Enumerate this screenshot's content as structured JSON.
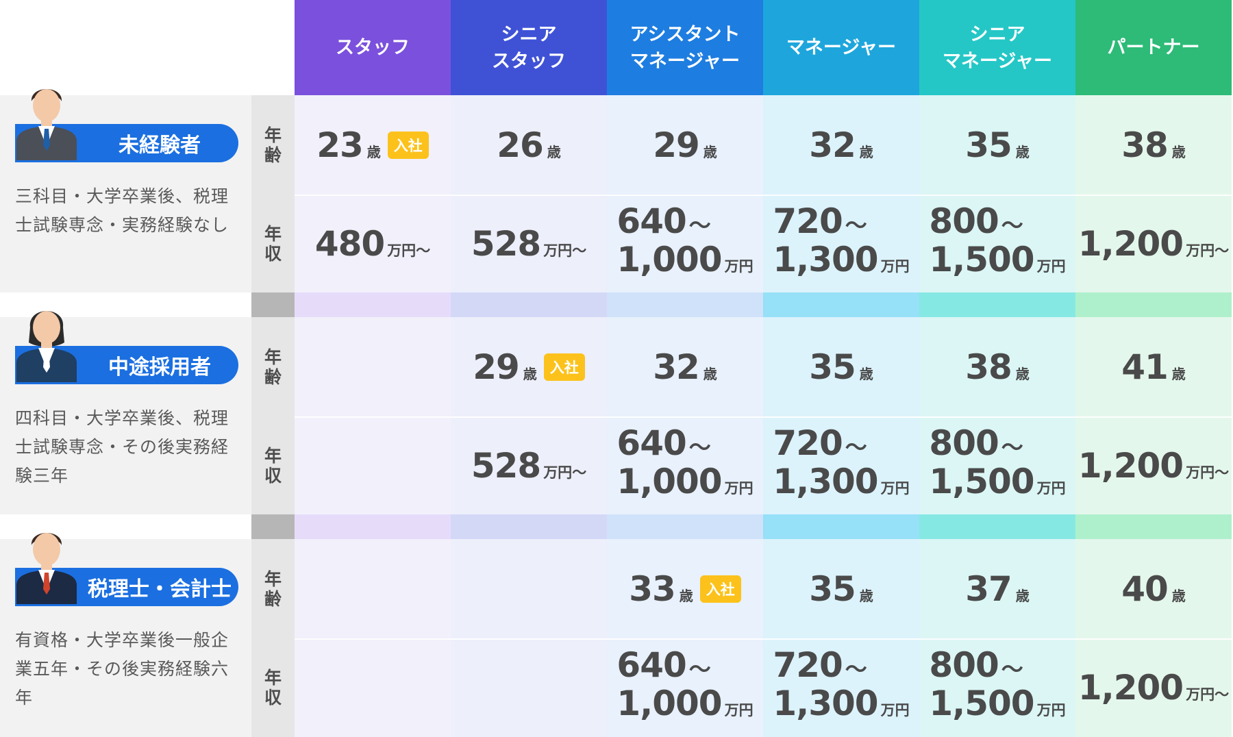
{
  "columns": [
    {
      "label": [
        "スタッフ"
      ],
      "header_color": "#7b50dd",
      "bg": "#f2f0fb",
      "band": "#e6dcfa"
    },
    {
      "label": [
        "シニア",
        "スタッフ"
      ],
      "header_color": "#3f52d6",
      "bg": "#edeffb",
      "band": "#d3d8f7"
    },
    {
      "label": [
        "アシスタント",
        "マネージャー"
      ],
      "header_color": "#1e7de0",
      "bg": "#e8f1fc",
      "band": "#cfe2fa"
    },
    {
      "label": [
        "マネージャー"
      ],
      "header_color": "#1ea6dc",
      "bg": "#dcf3fc",
      "band": "#96e0f8"
    },
    {
      "label": [
        "シニア",
        "マネージャー"
      ],
      "header_color": "#24c7c6",
      "bg": "#dbf6f5",
      "band": "#86e8e3"
    },
    {
      "label": [
        "パートナー"
      ],
      "header_color": "#2dbb77",
      "bg": "#e4f7ec",
      "band": "#aef0cc"
    }
  ],
  "row_labels": {
    "age": "年齢",
    "salary": "年収"
  },
  "units": {
    "age": "歳",
    "man_yen": "万円",
    "tilde": "〜"
  },
  "join_badge": "入社",
  "groups": [
    {
      "title": "未経験者",
      "description": "三科目・大学卒業後、税理士試験専念・実務経験なし",
      "tie_color": "#1f5fa8",
      "ages": [
        "23",
        "26",
        "29",
        "32",
        "35",
        "38"
      ],
      "join_index": 0,
      "salaries": [
        {
          "type": "from",
          "value": "480"
        },
        {
          "type": "from",
          "value": "528"
        },
        {
          "type": "range",
          "min": "640",
          "max": "1,000"
        },
        {
          "type": "range",
          "min": "720",
          "max": "1,300"
        },
        {
          "type": "range",
          "min": "800",
          "max": "1,500"
        },
        {
          "type": "from",
          "value": "1,200"
        }
      ]
    },
    {
      "title": "中途採用者",
      "description": "四科目・大学卒業後、税理士試験専念・その後実務経験三年",
      "tie_color": "#ffffff",
      "ages": [
        "",
        "29",
        "32",
        "35",
        "38",
        "41"
      ],
      "join_index": 1,
      "salaries": [
        null,
        {
          "type": "from",
          "value": "528"
        },
        {
          "type": "range",
          "min": "640",
          "max": "1,000"
        },
        {
          "type": "range",
          "min": "720",
          "max": "1,300"
        },
        {
          "type": "range",
          "min": "800",
          "max": "1,500"
        },
        {
          "type": "from",
          "value": "1,200"
        }
      ]
    },
    {
      "title": "税理士・会計士",
      "description": "有資格・大学卒業後一般企業五年・その後実務経験六年",
      "tie_color": "#d0442c",
      "ages": [
        "",
        "",
        "33",
        "35",
        "37",
        "40"
      ],
      "join_index": 2,
      "salaries": [
        null,
        null,
        {
          "type": "range",
          "min": "640",
          "max": "1,000"
        },
        {
          "type": "range",
          "min": "720",
          "max": "1,300"
        },
        {
          "type": "range",
          "min": "800",
          "max": "1,500"
        },
        {
          "type": "from",
          "value": "1,200"
        }
      ]
    }
  ]
}
